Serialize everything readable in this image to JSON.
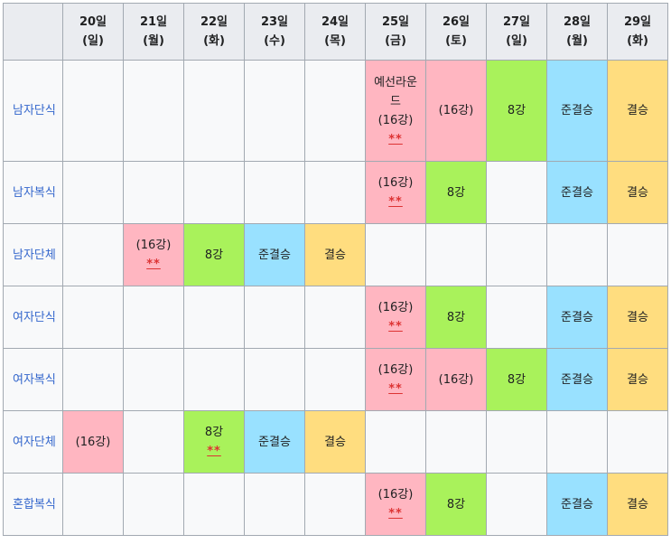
{
  "header": {
    "days": [
      {
        "date": "20일",
        "weekday": "(일)"
      },
      {
        "date": "21일",
        "weekday": "(월)"
      },
      {
        "date": "22일",
        "weekday": "(화)"
      },
      {
        "date": "23일",
        "weekday": "(수)"
      },
      {
        "date": "24일",
        "weekday": "(목)"
      },
      {
        "date": "25일",
        "weekday": "(금)"
      },
      {
        "date": "26일",
        "weekday": "(토)"
      },
      {
        "date": "27일",
        "weekday": "(일)"
      },
      {
        "date": "28일",
        "weekday": "(월)"
      },
      {
        "date": "29일",
        "weekday": "(화)"
      }
    ]
  },
  "colors": {
    "round_of_16": "#ffb6c1",
    "quarterfinal": "#a9f25b",
    "semifinal": "#99e1ff",
    "final": "#ffdd7f",
    "note": "#dd3333",
    "link": "#3366cc"
  },
  "rows": [
    {
      "event": "남자단식",
      "height": 112,
      "cells": [
        {
          "text": ""
        },
        {
          "text": ""
        },
        {
          "text": ""
        },
        {
          "text": ""
        },
        {
          "text": ""
        },
        {
          "text": "예선라운드\n(16강)",
          "type": "r16",
          "note": "**"
        },
        {
          "text": "(16강)",
          "type": "r16"
        },
        {
          "text": "8강",
          "type": "qf"
        },
        {
          "text": "준결승",
          "type": "sf"
        },
        {
          "text": "결승",
          "type": "f"
        }
      ]
    },
    {
      "event": "남자복식",
      "height": 69,
      "cells": [
        {
          "text": ""
        },
        {
          "text": ""
        },
        {
          "text": ""
        },
        {
          "text": ""
        },
        {
          "text": ""
        },
        {
          "text": "(16강)",
          "type": "r16",
          "note": "**"
        },
        {
          "text": "8강",
          "type": "qf"
        },
        {
          "text": ""
        },
        {
          "text": "준결승",
          "type": "sf"
        },
        {
          "text": "결승",
          "type": "f"
        }
      ]
    },
    {
      "event": "남자단체",
      "height": 69,
      "cells": [
        {
          "text": ""
        },
        {
          "text": "(16강)",
          "type": "r16",
          "note": "**"
        },
        {
          "text": "8강",
          "type": "qf"
        },
        {
          "text": "준결승",
          "type": "sf"
        },
        {
          "text": "결승",
          "type": "f"
        },
        {
          "text": ""
        },
        {
          "text": ""
        },
        {
          "text": ""
        },
        {
          "text": ""
        },
        {
          "text": ""
        }
      ]
    },
    {
      "event": "여자단식",
      "height": 69,
      "cells": [
        {
          "text": ""
        },
        {
          "text": ""
        },
        {
          "text": ""
        },
        {
          "text": ""
        },
        {
          "text": ""
        },
        {
          "text": "(16강)",
          "type": "r16",
          "note": "**"
        },
        {
          "text": "8강",
          "type": "qf"
        },
        {
          "text": ""
        },
        {
          "text": "준결승",
          "type": "sf"
        },
        {
          "text": "결승",
          "type": "f"
        }
      ]
    },
    {
      "event": "여자복식",
      "height": 69,
      "cells": [
        {
          "text": ""
        },
        {
          "text": ""
        },
        {
          "text": ""
        },
        {
          "text": ""
        },
        {
          "text": ""
        },
        {
          "text": "(16강)",
          "type": "r16",
          "note": "**"
        },
        {
          "text": "(16강)",
          "type": "r16"
        },
        {
          "text": "8강",
          "type": "qf"
        },
        {
          "text": "준결승",
          "type": "sf"
        },
        {
          "text": "결승",
          "type": "f"
        }
      ]
    },
    {
      "event": "여자단체",
      "height": 69,
      "cells": [
        {
          "text": "(16강)",
          "type": "r16"
        },
        {
          "text": ""
        },
        {
          "text": "8강",
          "type": "qf",
          "note": "**"
        },
        {
          "text": "준결승",
          "type": "sf"
        },
        {
          "text": "결승",
          "type": "f"
        },
        {
          "text": ""
        },
        {
          "text": ""
        },
        {
          "text": ""
        },
        {
          "text": ""
        },
        {
          "text": ""
        }
      ]
    },
    {
      "event": "혼합복식",
      "height": 69,
      "cells": [
        {
          "text": ""
        },
        {
          "text": ""
        },
        {
          "text": ""
        },
        {
          "text": ""
        },
        {
          "text": ""
        },
        {
          "text": "(16강)",
          "type": "r16",
          "note": "**"
        },
        {
          "text": "8강",
          "type": "qf"
        },
        {
          "text": ""
        },
        {
          "text": "준결승",
          "type": "sf"
        },
        {
          "text": "결승",
          "type": "f"
        }
      ]
    }
  ]
}
